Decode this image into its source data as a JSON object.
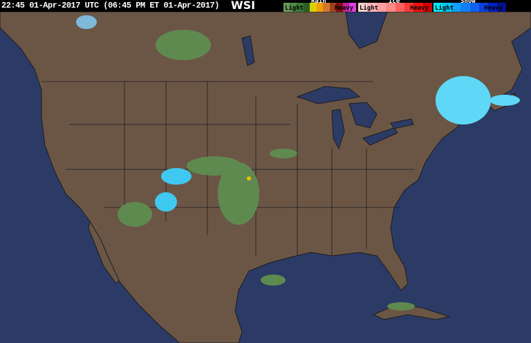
{
  "header": {
    "timestamp": "22:45 01-Apr-2017 UTC  (06:45 PM ET 01-Apr-2017)",
    "logo": "WSI"
  },
  "legend": [
    {
      "type": "Rain",
      "light": "Light",
      "heavy": "Heavy",
      "colors": [
        "#6a9a5a",
        "#4f8a45",
        "#3b7a35",
        "#2b5e22",
        "#d8d000",
        "#f0a000",
        "#d07830",
        "#a04018",
        "#801010",
        "#c020a0",
        "#e040e0"
      ]
    },
    {
      "type": "Ice",
      "light": "Light",
      "heavy": "Heavy",
      "colors": [
        "#ffd0d0",
        "#ffb8b8",
        "#ffa0a0",
        "#ff8888",
        "#ff6060",
        "#ff3838",
        "#f01010",
        "#d00000"
      ]
    },
    {
      "type": "Snow",
      "light": "Light",
      "heavy": "Heavy",
      "colors": [
        "#00e8f8",
        "#00c8f8",
        "#10a0f8",
        "#1080f8",
        "#1060f0",
        "#0840e0",
        "#0020c0",
        "#001090"
      ]
    }
  ],
  "map_colors": {
    "land": "#6b5646",
    "water": "#2c3b66",
    "border": "#1c1c1c"
  }
}
